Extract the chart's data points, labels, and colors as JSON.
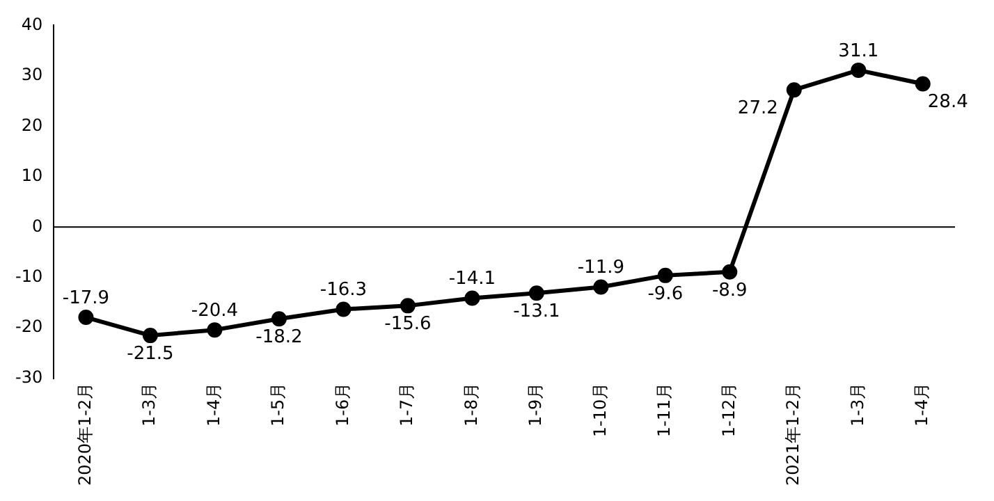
{
  "chart_data": {
    "type": "line",
    "categories": [
      "2020年1-2月",
      "1-3月",
      "1-4月",
      "1-5月",
      "1-6月",
      "1-7月",
      "1-8月",
      "1-9月",
      "1-10月",
      "1-11月",
      "1-12月",
      "2021年1-2月",
      "1-3月",
      "1-4月"
    ],
    "series": [
      {
        "color": "#000000",
        "values": [
          -17.9,
          -21.5,
          -20.4,
          -18.2,
          -16.3,
          -15.6,
          -14.1,
          -13.1,
          -11.9,
          -9.6,
          -8.9,
          27.2,
          31.1,
          28.4
        ]
      }
    ],
    "ylim": [
      -30,
      40
    ],
    "yticks": [
      -30,
      -20,
      -10,
      0,
      10,
      20,
      30,
      40
    ],
    "grid": false,
    "legend": false,
    "marker": "circle",
    "line_style": "solid",
    "data_labels": true,
    "ref_lines": [
      {
        "axis": "y",
        "value": 0,
        "color": "#000000"
      }
    ]
  }
}
